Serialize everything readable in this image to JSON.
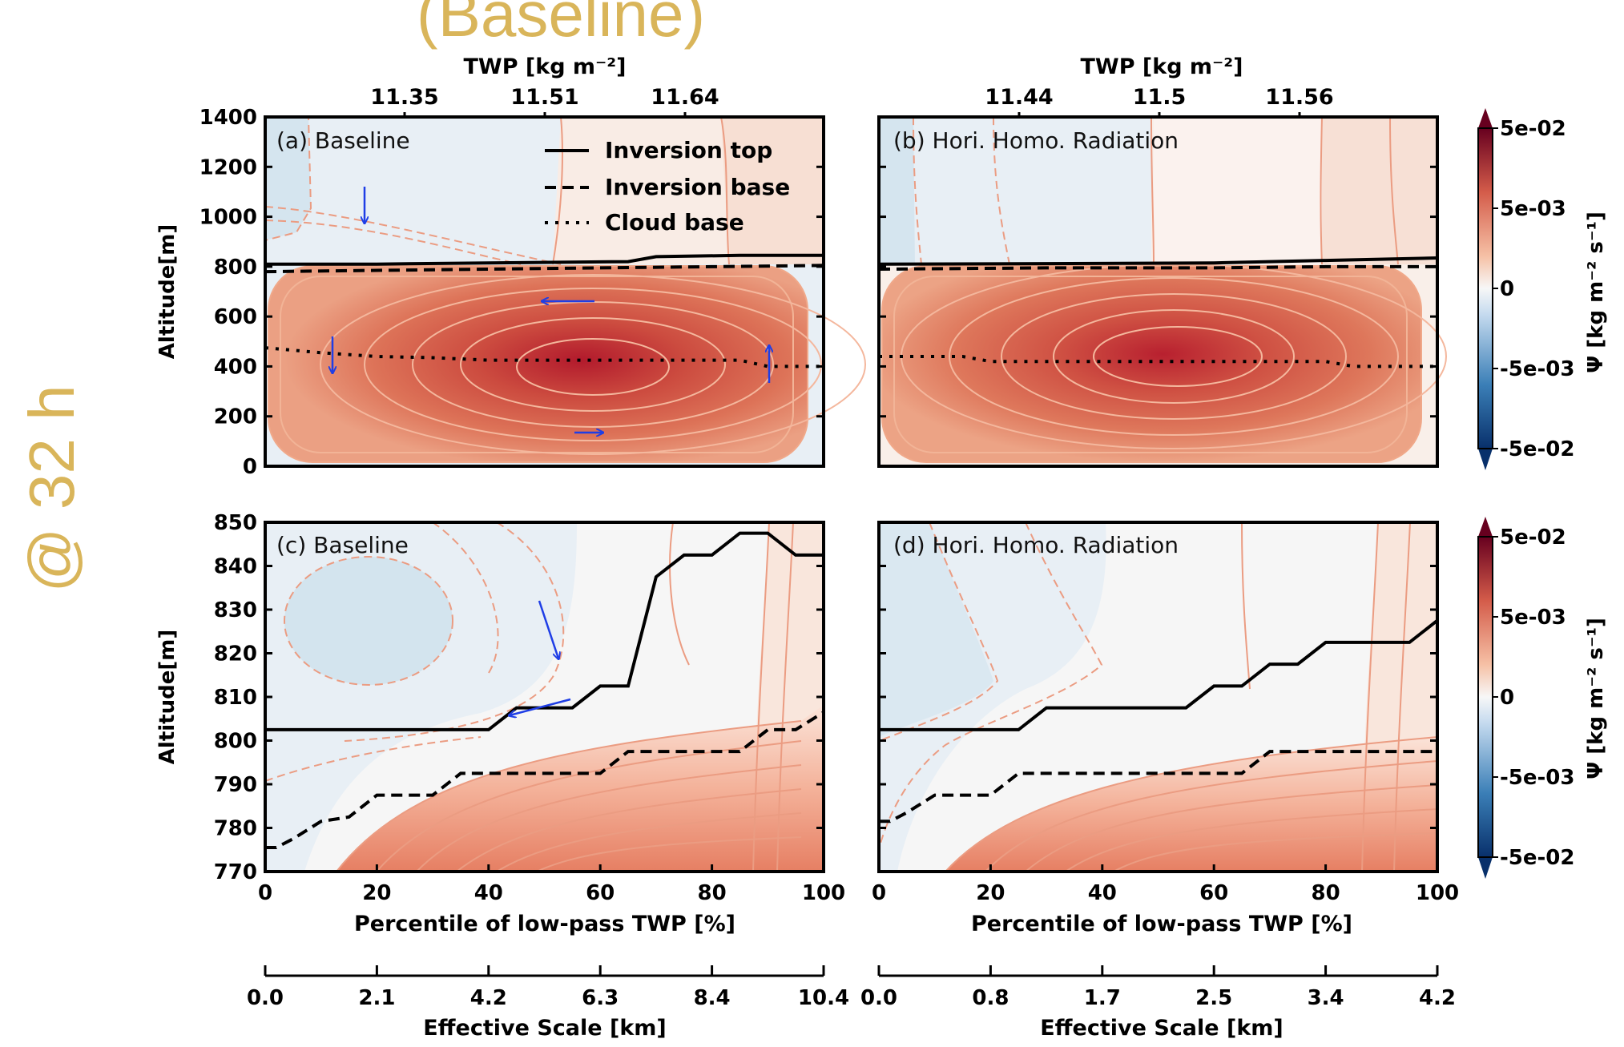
{
  "header": {
    "text": "(Baseline)",
    "side_label": "@ 32 h",
    "accent": "#d9b55a"
  },
  "colors": {
    "pos_dark": "#a50f25",
    "pos_light": "#fbe6dc",
    "neg_light": "#e7eff5",
    "neg_mid": "#cde0ec",
    "contour": "#e8906f",
    "arrow": "#1f3ee6"
  },
  "colorbar": {
    "label": "Ψ [kg m⁻² s⁻¹]",
    "ticks": [
      "5e-02",
      "5e-03",
      "0",
      "-5e-03",
      "-5e-02"
    ]
  },
  "panels": [
    {
      "title": "(a) Baseline",
      "twp_label": "TWP  [kg m⁻²]",
      "twp_ticks": [
        "11.35",
        "11.51",
        "11.64"
      ],
      "yticks": [
        "1400",
        "1200",
        "1000",
        "800",
        "600",
        "400",
        "200",
        "0"
      ],
      "ylabel": "Altitude[m]"
    },
    {
      "title": "(b) Hori. Homo. Radiation",
      "twp_label": "TWP  [kg m⁻²]",
      "twp_ticks": [
        "11.44",
        "11.5",
        "11.56"
      ]
    },
    {
      "title": "(c) Baseline",
      "yticks": [
        "850",
        "840",
        "830",
        "820",
        "810",
        "800",
        "790",
        "780",
        "770"
      ],
      "ylabel": "Altitude[m]",
      "xticks": [
        "0",
        "20",
        "40",
        "60",
        "80",
        "100"
      ],
      "xlabel": "Percentile of low-pass TWP  [%]",
      "scale_ticks": [
        "0.0",
        "2.1",
        "4.2",
        "6.3",
        "8.4",
        "10.4"
      ],
      "scale_label": "Effective Scale  [km]"
    },
    {
      "title": "(d) Hori. Homo. Radiation",
      "xticks": [
        "0",
        "20",
        "40",
        "60",
        "80",
        "100"
      ],
      "xlabel": "Percentile of low-pass TWP  [%]",
      "scale_ticks": [
        "0.0",
        "0.8",
        "1.7",
        "2.5",
        "3.4",
        "4.2"
      ],
      "scale_label": "Effective Scale  [km]"
    }
  ],
  "legend": [
    "Inversion top",
    "Inversion base",
    "Cloud base"
  ],
  "chart_data": [
    {
      "type": "line",
      "panel": "(a) Baseline",
      "xlim": [
        0,
        100
      ],
      "ylim": [
        0,
        1400
      ],
      "series": [
        {
          "name": "Inversion top",
          "x": [
            0,
            20,
            40,
            65,
            70,
            85,
            100
          ],
          "y": [
            810,
            810,
            815,
            820,
            840,
            845,
            845
          ]
        },
        {
          "name": "Inversion base",
          "x": [
            0,
            20,
            40,
            60,
            80,
            100
          ],
          "y": [
            780,
            785,
            790,
            795,
            800,
            805
          ]
        },
        {
          "name": "Cloud base",
          "x": [
            0,
            10,
            20,
            30,
            40,
            55,
            70,
            85,
            90,
            100
          ],
          "y": [
            475,
            455,
            440,
            435,
            425,
            425,
            425,
            425,
            400,
            400
          ]
        }
      ],
      "streamfunction_max_center": [
        60,
        480
      ]
    },
    {
      "type": "line",
      "panel": "(b) Hori. Homo. Radiation",
      "xlim": [
        0,
        100
      ],
      "ylim": [
        0,
        1400
      ],
      "series": [
        {
          "name": "Inversion top",
          "x": [
            0,
            30,
            60,
            80,
            100
          ],
          "y": [
            810,
            812,
            815,
            825,
            835
          ]
        },
        {
          "name": "Inversion base",
          "x": [
            0,
            30,
            60,
            80,
            100
          ],
          "y": [
            790,
            795,
            795,
            800,
            800
          ]
        },
        {
          "name": "Cloud base",
          "x": [
            0,
            15,
            20,
            40,
            60,
            80,
            85,
            100
          ],
          "y": [
            440,
            440,
            420,
            420,
            420,
            420,
            400,
            400
          ]
        }
      ],
      "streamfunction_max_center": [
        52,
        510
      ]
    },
    {
      "type": "line",
      "panel": "(c) Baseline",
      "xlim": [
        0,
        100
      ],
      "ylim": [
        770,
        850
      ],
      "series": [
        {
          "name": "Inversion top",
          "x": [
            0,
            40,
            45,
            55,
            60,
            65,
            70,
            75,
            80,
            85,
            90,
            95,
            100
          ],
          "y": [
            802.5,
            802.5,
            807.5,
            807.5,
            812.5,
            812.5,
            837.5,
            842.5,
            842.5,
            847.5,
            847.5,
            842.5,
            842.5
          ]
        },
        {
          "name": "Inversion base",
          "x": [
            0,
            2,
            5,
            10,
            15,
            20,
            25,
            30,
            35,
            40,
            45,
            60,
            65,
            70,
            75,
            80,
            85,
            90,
            95,
            100
          ],
          "y": [
            775.5,
            775.5,
            777.5,
            781.5,
            782.5,
            787.5,
            787.5,
            787.5,
            792.5,
            792.5,
            792.5,
            792.5,
            797.5,
            797.5,
            797.5,
            797.5,
            797.5,
            802.5,
            802.5,
            806.5
          ]
        }
      ]
    },
    {
      "type": "line",
      "panel": "(d) Hori. Homo. Radiation",
      "xlim": [
        0,
        100
      ],
      "ylim": [
        770,
        850
      ],
      "series": [
        {
          "name": "Inversion top",
          "x": [
            0,
            25,
            30,
            55,
            60,
            65,
            70,
            75,
            80,
            95,
            100
          ],
          "y": [
            802.5,
            802.5,
            807.5,
            807.5,
            812.5,
            812.5,
            817.5,
            817.5,
            822.5,
            822.5,
            827.5
          ]
        },
        {
          "name": "Inversion base",
          "x": [
            0,
            2,
            5,
            10,
            20,
            25,
            65,
            70,
            75,
            100
          ],
          "y": [
            781.5,
            781.5,
            783.5,
            787.5,
            787.5,
            792.5,
            792.5,
            797.5,
            797.5,
            797.5
          ]
        }
      ]
    }
  ]
}
